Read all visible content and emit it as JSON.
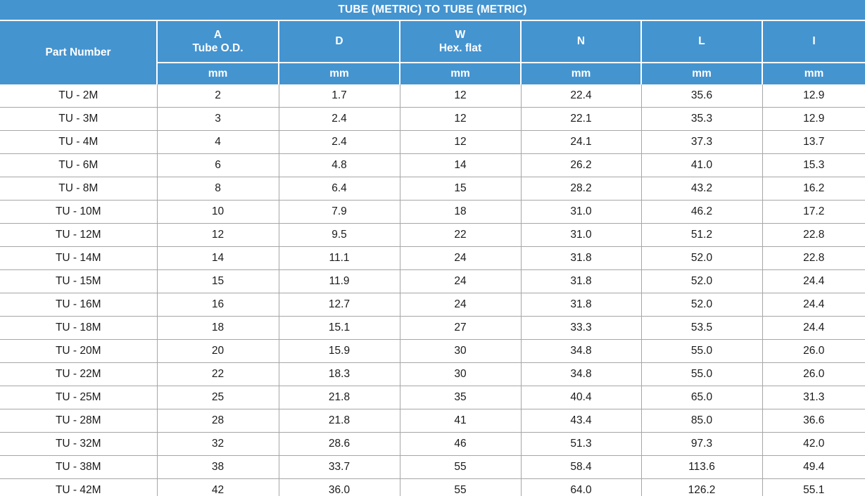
{
  "title": "TUBE (METRIC) TO TUBE (METRIC)",
  "colors": {
    "header_blue": "#4494d0",
    "bottom_rule_blue": "#53a0d8",
    "grid_gray": "#a6a6a6",
    "header_text": "#ffffff",
    "body_text": "#1b1b1b"
  },
  "table": {
    "columns": [
      {
        "label": "Part Number",
        "sublabel": "",
        "unit": ""
      },
      {
        "label": "A",
        "sublabel": "Tube O.D.",
        "unit": "mm"
      },
      {
        "label": "D",
        "sublabel": "",
        "unit": "mm"
      },
      {
        "label": "W",
        "sublabel": "Hex. flat",
        "unit": "mm"
      },
      {
        "label": "N",
        "sublabel": "",
        "unit": "mm"
      },
      {
        "label": "L",
        "sublabel": "",
        "unit": "mm"
      },
      {
        "label": "I",
        "sublabel": "",
        "unit": "mm"
      }
    ],
    "rows": [
      [
        "TU - 2M",
        "2",
        "1.7",
        "12",
        "22.4",
        "35.6",
        "12.9"
      ],
      [
        "TU - 3M",
        "3",
        "2.4",
        "12",
        "22.1",
        "35.3",
        "12.9"
      ],
      [
        "TU - 4M",
        "4",
        "2.4",
        "12",
        "24.1",
        "37.3",
        "13.7"
      ],
      [
        "TU - 6M",
        "6",
        "4.8",
        "14",
        "26.2",
        "41.0",
        "15.3"
      ],
      [
        "TU - 8M",
        "8",
        "6.4",
        "15",
        "28.2",
        "43.2",
        "16.2"
      ],
      [
        "TU - 10M",
        "10",
        "7.9",
        "18",
        "31.0",
        "46.2",
        "17.2"
      ],
      [
        "TU - 12M",
        "12",
        "9.5",
        "22",
        "31.0",
        "51.2",
        "22.8"
      ],
      [
        "TU - 14M",
        "14",
        "11.1",
        "24",
        "31.8",
        "52.0",
        "22.8"
      ],
      [
        "TU - 15M",
        "15",
        "11.9",
        "24",
        "31.8",
        "52.0",
        "24.4"
      ],
      [
        "TU - 16M",
        "16",
        "12.7",
        "24",
        "31.8",
        "52.0",
        "24.4"
      ],
      [
        "TU - 18M",
        "18",
        "15.1",
        "27",
        "33.3",
        "53.5",
        "24.4"
      ],
      [
        "TU - 20M",
        "20",
        "15.9",
        "30",
        "34.8",
        "55.0",
        "26.0"
      ],
      [
        "TU - 22M",
        "22",
        "18.3",
        "30",
        "34.8",
        "55.0",
        "26.0"
      ],
      [
        "TU - 25M",
        "25",
        "21.8",
        "35",
        "40.4",
        "65.0",
        "31.3"
      ],
      [
        "TU - 28M",
        "28",
        "21.8",
        "41",
        "43.4",
        "85.0",
        "36.6"
      ],
      [
        "TU - 32M",
        "32",
        "28.6",
        "46",
        "51.3",
        "97.3",
        "42.0"
      ],
      [
        "TU - 38M",
        "38",
        "33.7",
        "55",
        "58.4",
        "113.6",
        "49.4"
      ],
      [
        "TU - 42M",
        "42",
        "36.0",
        "55",
        "64.0",
        "126.2",
        "55.1"
      ]
    ]
  }
}
